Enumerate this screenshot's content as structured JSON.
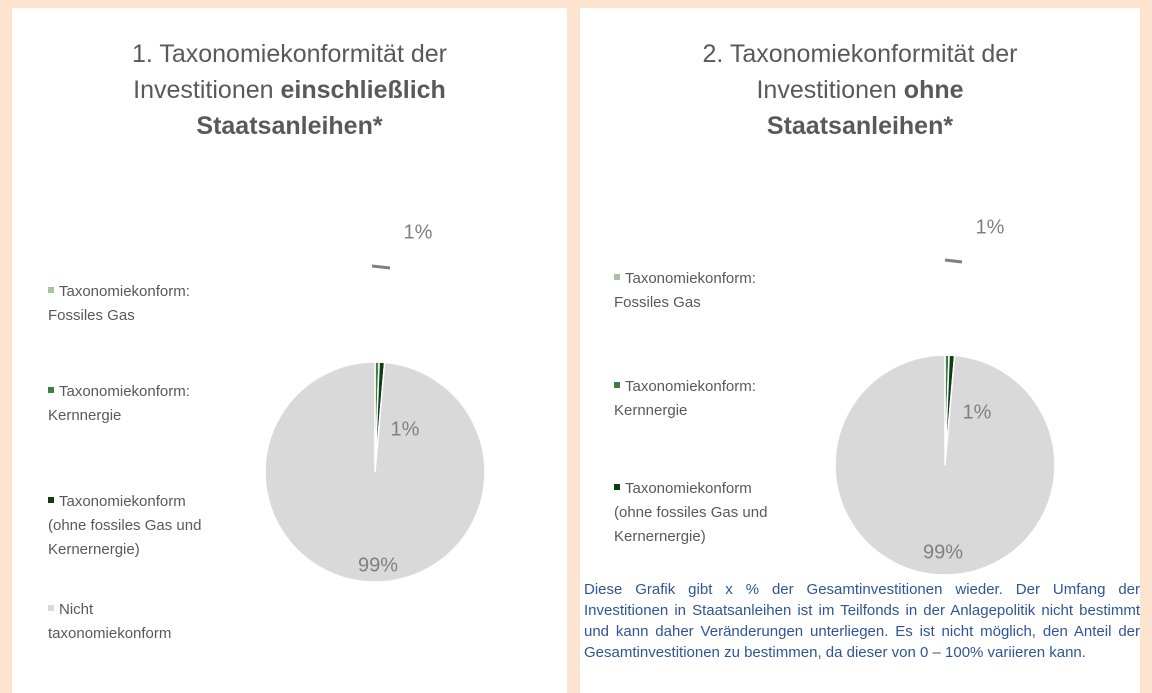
{
  "chart_data": [
    {
      "type": "pie",
      "title": "1. Taxonomiekonformität der Investitionen",
      "title_bold": "einschließlich Staatsanleihen*",
      "categories": [
        "Taxonomiekonform: Fossiles Gas",
        "Taxonomiekonform: Kernnergie",
        "Taxonomiekonform (ohne fossiles Gas und Kernernergie)",
        "Nicht taxonomiekonform"
      ],
      "colors": [
        "#a9c2a0",
        "#3f7f47",
        "#0d3d12",
        "#d9d9d9"
      ],
      "values": [
        0,
        0.6,
        0.8,
        98.6
      ],
      "value_labels": [
        null,
        "1%",
        "1%",
        "99%"
      ],
      "legend": "left"
    },
    {
      "type": "pie",
      "title": "2. Taxonomiekonformität der Investitionen",
      "title_bold": "ohne Staatsanleihen*",
      "categories": [
        "Taxonomiekonform: Fossiles Gas",
        "Taxonomiekonform: Kernnergie",
        "Taxonomiekonform (ohne fossiles Gas und Kernernergie)",
        "Nicht taxonomiekonform"
      ],
      "colors": [
        "#a9c2a0",
        "#3f7f47",
        "#0d3d12",
        "#d9d9d9"
      ],
      "values": [
        0,
        0.6,
        0.8,
        98.6
      ],
      "value_labels": [
        null,
        "1%",
        "1%",
        "99%"
      ],
      "legend": "left"
    }
  ],
  "note": "Diese Grafik gibt x % der Gesamtinvestitionen wieder. Der Umfang der Investitionen in Staatsanleihen ist im Teilfonds in der Anlagepolitik nicht bestimmt und kann daher Veränderungen unterliegen. Es ist nicht möglich, den Anteil der Gesamtinvestitionen zu bestimmen, da dieser von 0 – 100% variieren kann."
}
